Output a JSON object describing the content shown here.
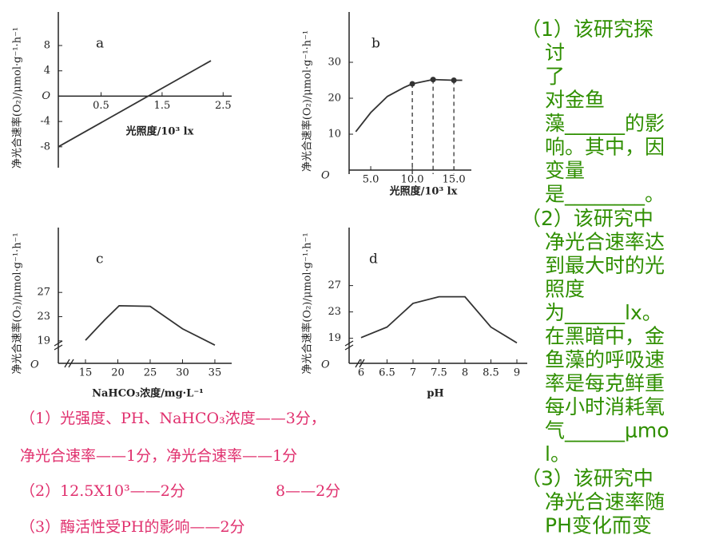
{
  "chart_data": [
    {
      "type": "line",
      "title": "a",
      "x_label": "光照度/10³ lx",
      "y_label": "净光合速率(O₂)/μmol·g⁻¹·h⁻¹",
      "x": [
        -0.2,
        2.3
      ],
      "values": [
        -8,
        5.6
      ],
      "color": "#333333",
      "xlim": [
        -0.2,
        2.64
      ],
      "ylim": [
        -11.3,
        13.3
      ],
      "xticks": [
        0.5,
        1.5,
        2.5
      ],
      "yticks": [
        -8,
        -4,
        {
          "value": 0,
          "label": "O"
        },
        4,
        8
      ]
    },
    {
      "type": "line",
      "title": "b",
      "x_label": "光照度/10³ lx",
      "y_label": "净光合速率(O₂)/μmol·g⁻¹·h⁻¹",
      "origin_label": "O",
      "x": [
        3.2,
        5,
        7,
        9,
        10,
        12.5,
        15,
        16
      ],
      "values": [
        10.7,
        16,
        20.5,
        23,
        24,
        25.2,
        25,
        25
      ],
      "color": "#333333",
      "marker_x": [
        10,
        12.5,
        15
      ],
      "marker_values": [
        24,
        25.2,
        25
      ],
      "xlim": [
        2.4,
        17.1
      ],
      "ylim": [
        -1.1,
        44
      ],
      "xticks": [
        {
          "value": 5,
          "label": "5.0"
        },
        {
          "value": 10,
          "label": "10.0"
        },
        {
          "value": 15,
          "label": "15.0"
        }
      ],
      "yticks": [
        10,
        20,
        30
      ]
    },
    {
      "type": "line",
      "title": "c",
      "x_label": "NaHCO₃浓度/mg·L⁻¹",
      "y_label": "净光合速率(O₂)/μmol·g⁻¹·h⁻¹",
      "origin_label": "O",
      "x": [
        15,
        18,
        20.2,
        25,
        30,
        35
      ],
      "values": [
        19.1,
        22.5,
        24.8,
        24.7,
        21,
        18.3
      ],
      "color": "#333333",
      "xlim": [
        10.8,
        37.6
      ],
      "ylim": [
        15.3,
        37.7
      ],
      "xticks": [
        15,
        20,
        25,
        30,
        35
      ],
      "yticks": [
        19,
        23,
        27
      ]
    },
    {
      "type": "line",
      "title": "d",
      "x_label": "pH",
      "y_label": "净光合速率(O₂)/μmol·g⁻¹·h⁻¹",
      "origin_label": "O",
      "x": [
        6,
        6.5,
        7,
        7.5,
        8,
        8.5,
        9
      ],
      "values": [
        19.1,
        20.7,
        24.3,
        25.3,
        25.3,
        20.7,
        18.3
      ],
      "color": "#333333",
      "xlim": [
        5.77,
        9.2
      ],
      "ylim": [
        15.2,
        35.8
      ],
      "xticks": [
        6,
        6.5,
        7,
        7.5,
        8,
        8.5,
        9
      ],
      "yticks": [
        19,
        23,
        27
      ]
    }
  ],
  "questions": [
    [
      "（1）该研究探",
      "讨",
      "了",
      "对金鱼",
      "藻______的影",
      "响。其中，因",
      "变量",
      "是________。"
    ],
    [
      "（2）该研究中",
      "净光合速率达",
      "到最大时的光",
      "照度",
      "为______lx。",
      "在黑暗中，金",
      "鱼藻的呼吸速",
      "率是每克鲜重",
      "每小时消耗氧",
      "气______μmo",
      "l。"
    ],
    [
      "（3）该研究中",
      "净光合速率随",
      "PH变化而变"
    ]
  ],
  "answers": [
    [
      "（1）光强度、PH、NaHCO₃浓度——3分，"
    ],
    [
      "净光合速率——1分，净光合速率——1分"
    ],
    [
      "（2）12.5X10³——2分",
      "8——2分"
    ],
    [
      "（3）酶活性受PH的影响——2分"
    ]
  ]
}
